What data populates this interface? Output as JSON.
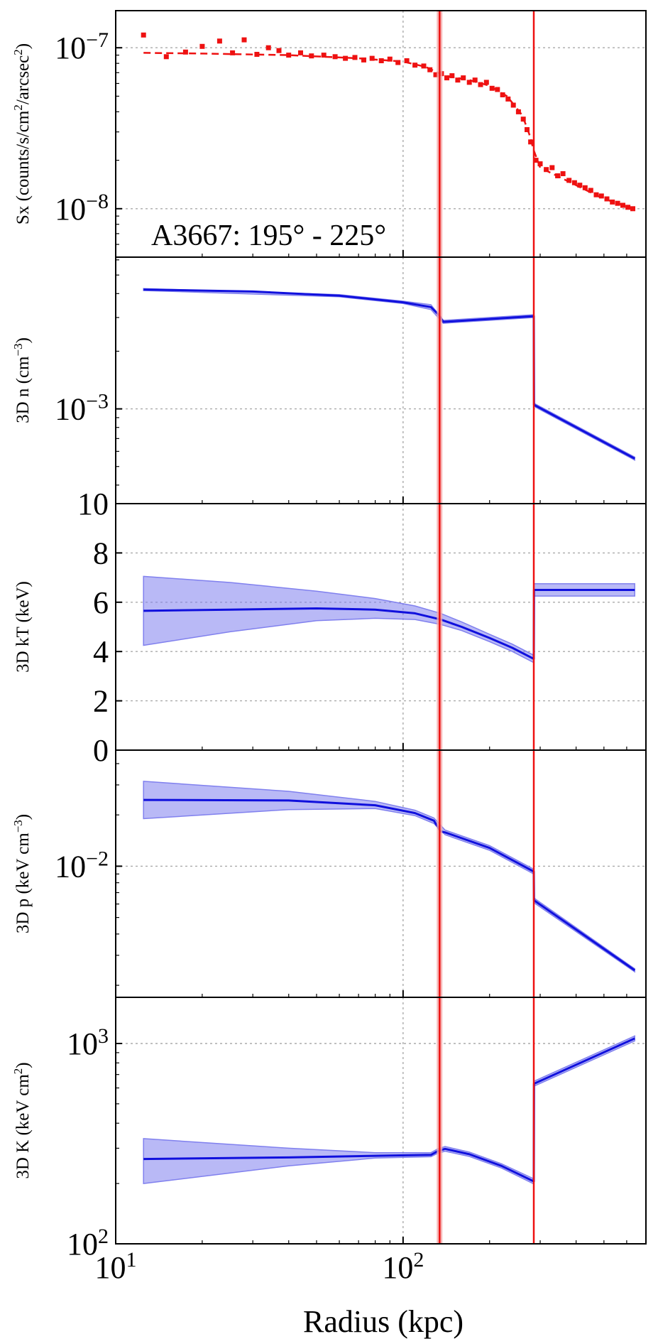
{
  "chart_data": {
    "type": "line",
    "annotation": "A3667: 195° - 225°",
    "xlabel": "Radius (kpc)",
    "xscale": "log",
    "xlim": [
      10,
      700
    ],
    "x_ticks": [
      {
        "value": 10,
        "base": "10",
        "exp": "1"
      },
      {
        "value": 100,
        "base": "10",
        "exp": "2"
      }
    ],
    "colors": {
      "data": "#ee1111",
      "model": "#1010dd",
      "band": "#8080ee",
      "front": "#ee1111",
      "front_band": "#f4a5a5"
    },
    "fronts": [
      {
        "x": 134,
        "half_width": 3
      },
      {
        "x": 285,
        "half_width": 1
      }
    ],
    "panels": [
      {
        "id": "sx",
        "ylabel_pre": "Sx (counts/s/cm",
        "ylabel_sup1": "2",
        "ylabel_mid": "/arcsec",
        "ylabel_sup2": "2",
        "ylabel_post": ")",
        "yscale": "log",
        "ylim": [
          5e-09,
          1.7e-07
        ],
        "yticks": [
          {
            "value": 1e-07,
            "base": "10",
            "exp": "−7"
          },
          {
            "value": 1e-08,
            "base": "10",
            "exp": "−8"
          }
        ],
        "model_dashed": [
          [
            12.5,
            9.3e-08
          ],
          [
            20,
            9.2e-08
          ],
          [
            40,
            9e-08
          ],
          [
            70,
            8.6e-08
          ],
          [
            100,
            8.2e-08
          ],
          [
            120,
            7.6e-08
          ],
          [
            132,
            7e-08
          ],
          [
            140,
            6.7e-08
          ],
          [
            170,
            6.3e-08
          ],
          [
            200,
            5.8e-08
          ],
          [
            230,
            5e-08
          ],
          [
            260,
            3.8e-08
          ],
          [
            275,
            2.9e-08
          ],
          [
            285,
            2.3e-08
          ],
          [
            300,
            1.8e-08
          ],
          [
            400,
            1.4e-08
          ],
          [
            500,
            1.15e-08
          ],
          [
            640,
            1e-08
          ]
        ],
        "scatter": [
          {
            "x": 12.5,
            "y": 1.2e-07
          },
          {
            "x": 15.0,
            "y": 8.8e-08
          },
          {
            "x": 17.5,
            "y": 9.4e-08
          },
          {
            "x": 20.0,
            "y": 1.02e-07
          },
          {
            "x": 23.0,
            "y": 1.1e-07
          },
          {
            "x": 25.5,
            "y": 9.3e-08
          },
          {
            "x": 28.0,
            "y": 1.12e-07
          },
          {
            "x": 31.0,
            "y": 9.1e-08
          },
          {
            "x": 34.0,
            "y": 1e-07
          },
          {
            "x": 37.0,
            "y": 9.6e-08
          },
          {
            "x": 40.0,
            "y": 9e-08
          },
          {
            "x": 44.0,
            "y": 9.3e-08
          },
          {
            "x": 48.0,
            "y": 8.9e-08
          },
          {
            "x": 53.0,
            "y": 9e-08
          },
          {
            "x": 58.0,
            "y": 8.8e-08
          },
          {
            "x": 63.0,
            "y": 8.6e-08
          },
          {
            "x": 68.0,
            "y": 8.7e-08
          },
          {
            "x": 73.0,
            "y": 8.4e-08
          },
          {
            "x": 78.0,
            "y": 8.6e-08
          },
          {
            "x": 84.0,
            "y": 8.3e-08
          },
          {
            "x": 90.0,
            "y": 8.5e-08
          },
          {
            "x": 96.0,
            "y": 8.1e-08
          },
          {
            "x": 103.0,
            "y": 8.3e-08
          },
          {
            "x": 110.0,
            "y": 7.8e-08
          },
          {
            "x": 118.0,
            "y": 7.7e-08
          },
          {
            "x": 124.0,
            "y": 7.3e-08
          },
          {
            "x": 130.0,
            "y": 6.8e-08
          },
          {
            "x": 136.0,
            "y": 6.9e-08
          },
          {
            "x": 142.0,
            "y": 6.5e-08
          },
          {
            "x": 148.0,
            "y": 6.7e-08
          },
          {
            "x": 155.0,
            "y": 6.3e-08
          },
          {
            "x": 162.0,
            "y": 6.5e-08
          },
          {
            "x": 170.0,
            "y": 6.1e-08
          },
          {
            "x": 178.0,
            "y": 6.3e-08
          },
          {
            "x": 186.0,
            "y": 5.9e-08
          },
          {
            "x": 195.0,
            "y": 6.1e-08
          },
          {
            "x": 204.0,
            "y": 5.6e-08
          },
          {
            "x": 213.0,
            "y": 5.5e-08
          },
          {
            "x": 222.0,
            "y": 5.1e-08
          },
          {
            "x": 232.0,
            "y": 4.8e-08
          },
          {
            "x": 242.0,
            "y": 4.4e-08
          },
          {
            "x": 252.0,
            "y": 4e-08
          },
          {
            "x": 262.0,
            "y": 3.6e-08
          },
          {
            "x": 270.0,
            "y": 3.1e-08
          },
          {
            "x": 278.0,
            "y": 2.6e-08
          },
          {
            "x": 290.0,
            "y": 2e-08
          },
          {
            "x": 300.0,
            "y": 1.9e-08
          },
          {
            "x": 315.0,
            "y": 1.75e-08
          },
          {
            "x": 330.0,
            "y": 1.8e-08
          },
          {
            "x": 345.0,
            "y": 1.6e-08
          },
          {
            "x": 360.0,
            "y": 1.65e-08
          },
          {
            "x": 378.0,
            "y": 1.5e-08
          },
          {
            "x": 395.0,
            "y": 1.45e-08
          },
          {
            "x": 412.0,
            "y": 1.4e-08
          },
          {
            "x": 430.0,
            "y": 1.35e-08
          },
          {
            "x": 450.0,
            "y": 1.3e-08
          },
          {
            "x": 470.0,
            "y": 1.22e-08
          },
          {
            "x": 490.0,
            "y": 1.2e-08
          },
          {
            "x": 512.0,
            "y": 1.15e-08
          },
          {
            "x": 535.0,
            "y": 1.1e-08
          },
          {
            "x": 558.0,
            "y": 1.08e-08
          },
          {
            "x": 582.0,
            "y": 1.05e-08
          },
          {
            "x": 606.0,
            "y": 1.02e-08
          },
          {
            "x": 630.0,
            "y": 1e-08
          }
        ]
      },
      {
        "id": "density",
        "ylabel_pre": "3D n (cm",
        "ylabel_sup1": "−3",
        "ylabel_post": ")",
        "yscale": "log",
        "ylim": [
          0.00032,
          0.0062
        ],
        "yticks": [
          {
            "value": 0.001,
            "base": "10",
            "exp": "−3"
          }
        ],
        "model": [
          [
            12.5,
            0.0042
          ],
          [
            30,
            0.0041
          ],
          [
            60,
            0.0039
          ],
          [
            100,
            0.0036
          ],
          [
            125,
            0.0034
          ],
          [
            133,
            0.0031
          ],
          [
            138,
            0.00285
          ],
          [
            140,
            0.00285
          ],
          [
            285,
            0.00305
          ],
          [
            285.5,
            0.00105
          ],
          [
            640,
            0.00055
          ]
        ],
        "band": [
          [
            12.5,
            0.00425,
            0.00415
          ],
          [
            60,
            0.00395,
            0.00385
          ],
          [
            100,
            0.00365,
            0.00355
          ],
          [
            125,
            0.0035,
            0.0033
          ],
          [
            138,
            0.0029,
            0.0028
          ],
          [
            285,
            0.0031,
            0.003
          ],
          [
            285.5,
            0.00107,
            0.00103
          ],
          [
            640,
            0.00056,
            0.00054
          ]
        ]
      },
      {
        "id": "temperature",
        "ylabel_pre": "3D kT (keV)",
        "yscale": "linear",
        "ylim": [
          0,
          10
        ],
        "yticks": [
          {
            "value": 0,
            "label": "0"
          },
          {
            "value": 2,
            "label": "2"
          },
          {
            "value": 4,
            "label": "4"
          },
          {
            "value": 6,
            "label": "6"
          },
          {
            "value": 8,
            "label": "8"
          },
          {
            "value": 10,
            "label": "10"
          }
        ],
        "model": [
          [
            12.5,
            5.65
          ],
          [
            25,
            5.7
          ],
          [
            50,
            5.75
          ],
          [
            80,
            5.7
          ],
          [
            110,
            5.55
          ],
          [
            135,
            5.3
          ],
          [
            160,
            5.0
          ],
          [
            200,
            4.55
          ],
          [
            240,
            4.15
          ],
          [
            285,
            3.7
          ],
          [
            285.5,
            6.5
          ],
          [
            640,
            6.5
          ]
        ],
        "band": [
          [
            12.5,
            7.05,
            4.25
          ],
          [
            25,
            6.8,
            4.8
          ],
          [
            50,
            6.45,
            5.25
          ],
          [
            80,
            6.15,
            5.35
          ],
          [
            110,
            5.85,
            5.3
          ],
          [
            135,
            5.55,
            5.1
          ],
          [
            160,
            5.2,
            4.85
          ],
          [
            200,
            4.7,
            4.4
          ],
          [
            240,
            4.3,
            4.0
          ],
          [
            285,
            3.85,
            3.55
          ],
          [
            285.5,
            6.75,
            6.25
          ],
          [
            640,
            6.75,
            6.25
          ]
        ]
      },
      {
        "id": "pressure",
        "ylabel_pre": "3D p (keV cm",
        "ylabel_sup1": "−3",
        "ylabel_post": ")",
        "yscale": "log",
        "ylim": [
          0.0017,
          0.048
        ],
        "yticks": [
          {
            "value": 0.01,
            "base": "10",
            "exp": "−2"
          }
        ],
        "model": [
          [
            12.5,
            0.0245
          ],
          [
            40,
            0.0243
          ],
          [
            80,
            0.0228
          ],
          [
            110,
            0.0205
          ],
          [
            128,
            0.0185
          ],
          [
            135,
            0.016
          ],
          [
            140,
            0.0158
          ],
          [
            200,
            0.0128
          ],
          [
            285,
            0.0093
          ],
          [
            285.5,
            0.0063
          ],
          [
            640,
            0.00245
          ]
        ],
        "band": [
          [
            12.5,
            0.0315,
            0.019
          ],
          [
            40,
            0.0275,
            0.0215
          ],
          [
            80,
            0.024,
            0.0218
          ],
          [
            110,
            0.0213,
            0.0198
          ],
          [
            128,
            0.0192,
            0.0178
          ],
          [
            140,
            0.0163,
            0.0153
          ],
          [
            200,
            0.0132,
            0.0124
          ],
          [
            285,
            0.0096,
            0.009
          ],
          [
            285.5,
            0.0065,
            0.0061
          ],
          [
            640,
            0.0025,
            0.0024
          ]
        ]
      },
      {
        "id": "entropy",
        "ylabel_pre": "3D K (keV cm",
        "ylabel_sup1": "2",
        "ylabel_post": ")",
        "yscale": "log",
        "ylim": [
          100,
          1700
        ],
        "yticks": [
          {
            "value": 1000,
            "base": "10",
            "exp": "3"
          },
          {
            "value": 100,
            "base": "10",
            "exp": "2"
          }
        ],
        "model": [
          [
            12.5,
            265
          ],
          [
            40,
            270
          ],
          [
            80,
            275
          ],
          [
            125,
            278
          ],
          [
            132,
            290
          ],
          [
            140,
            298
          ],
          [
            170,
            280
          ],
          [
            220,
            245
          ],
          [
            285,
            205
          ],
          [
            285.5,
            630
          ],
          [
            640,
            1060
          ]
        ],
        "band": [
          [
            12.5,
            335,
            200
          ],
          [
            40,
            300,
            245
          ],
          [
            80,
            285,
            268
          ],
          [
            125,
            285,
            272
          ],
          [
            132,
            298,
            283
          ],
          [
            140,
            306,
            290
          ],
          [
            170,
            287,
            273
          ],
          [
            220,
            251,
            239
          ],
          [
            285,
            211,
            199
          ],
          [
            285.5,
            648,
            612
          ],
          [
            640,
            1090,
            1030
          ]
        ]
      }
    ]
  }
}
